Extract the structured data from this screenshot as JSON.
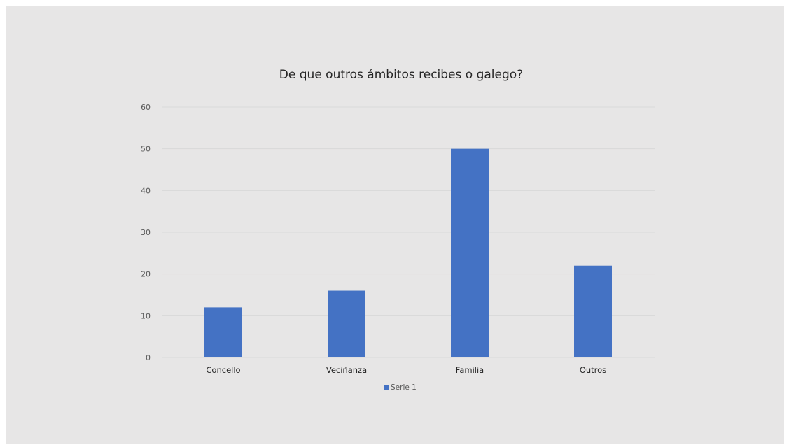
{
  "chart_data": {
    "type": "bar",
    "title": "De que outros ámbitos recibes o galego?",
    "categories": [
      "Concello",
      "Veciñanza",
      "Familia",
      "Outros"
    ],
    "series": [
      {
        "name": "Serie 1",
        "values": [
          12,
          16,
          50,
          22
        ],
        "color": "#4472c4"
      }
    ],
    "ylim": [
      0,
      60
    ],
    "yticks": [
      0,
      10,
      20,
      30,
      40,
      50,
      60
    ],
    "xlabel": "",
    "ylabel": "",
    "grid": true,
    "legend_position": "bottom"
  },
  "colors": {
    "background": "#e7e6e6",
    "gridline": "#d9d9d9",
    "bar": "#4472c4"
  }
}
